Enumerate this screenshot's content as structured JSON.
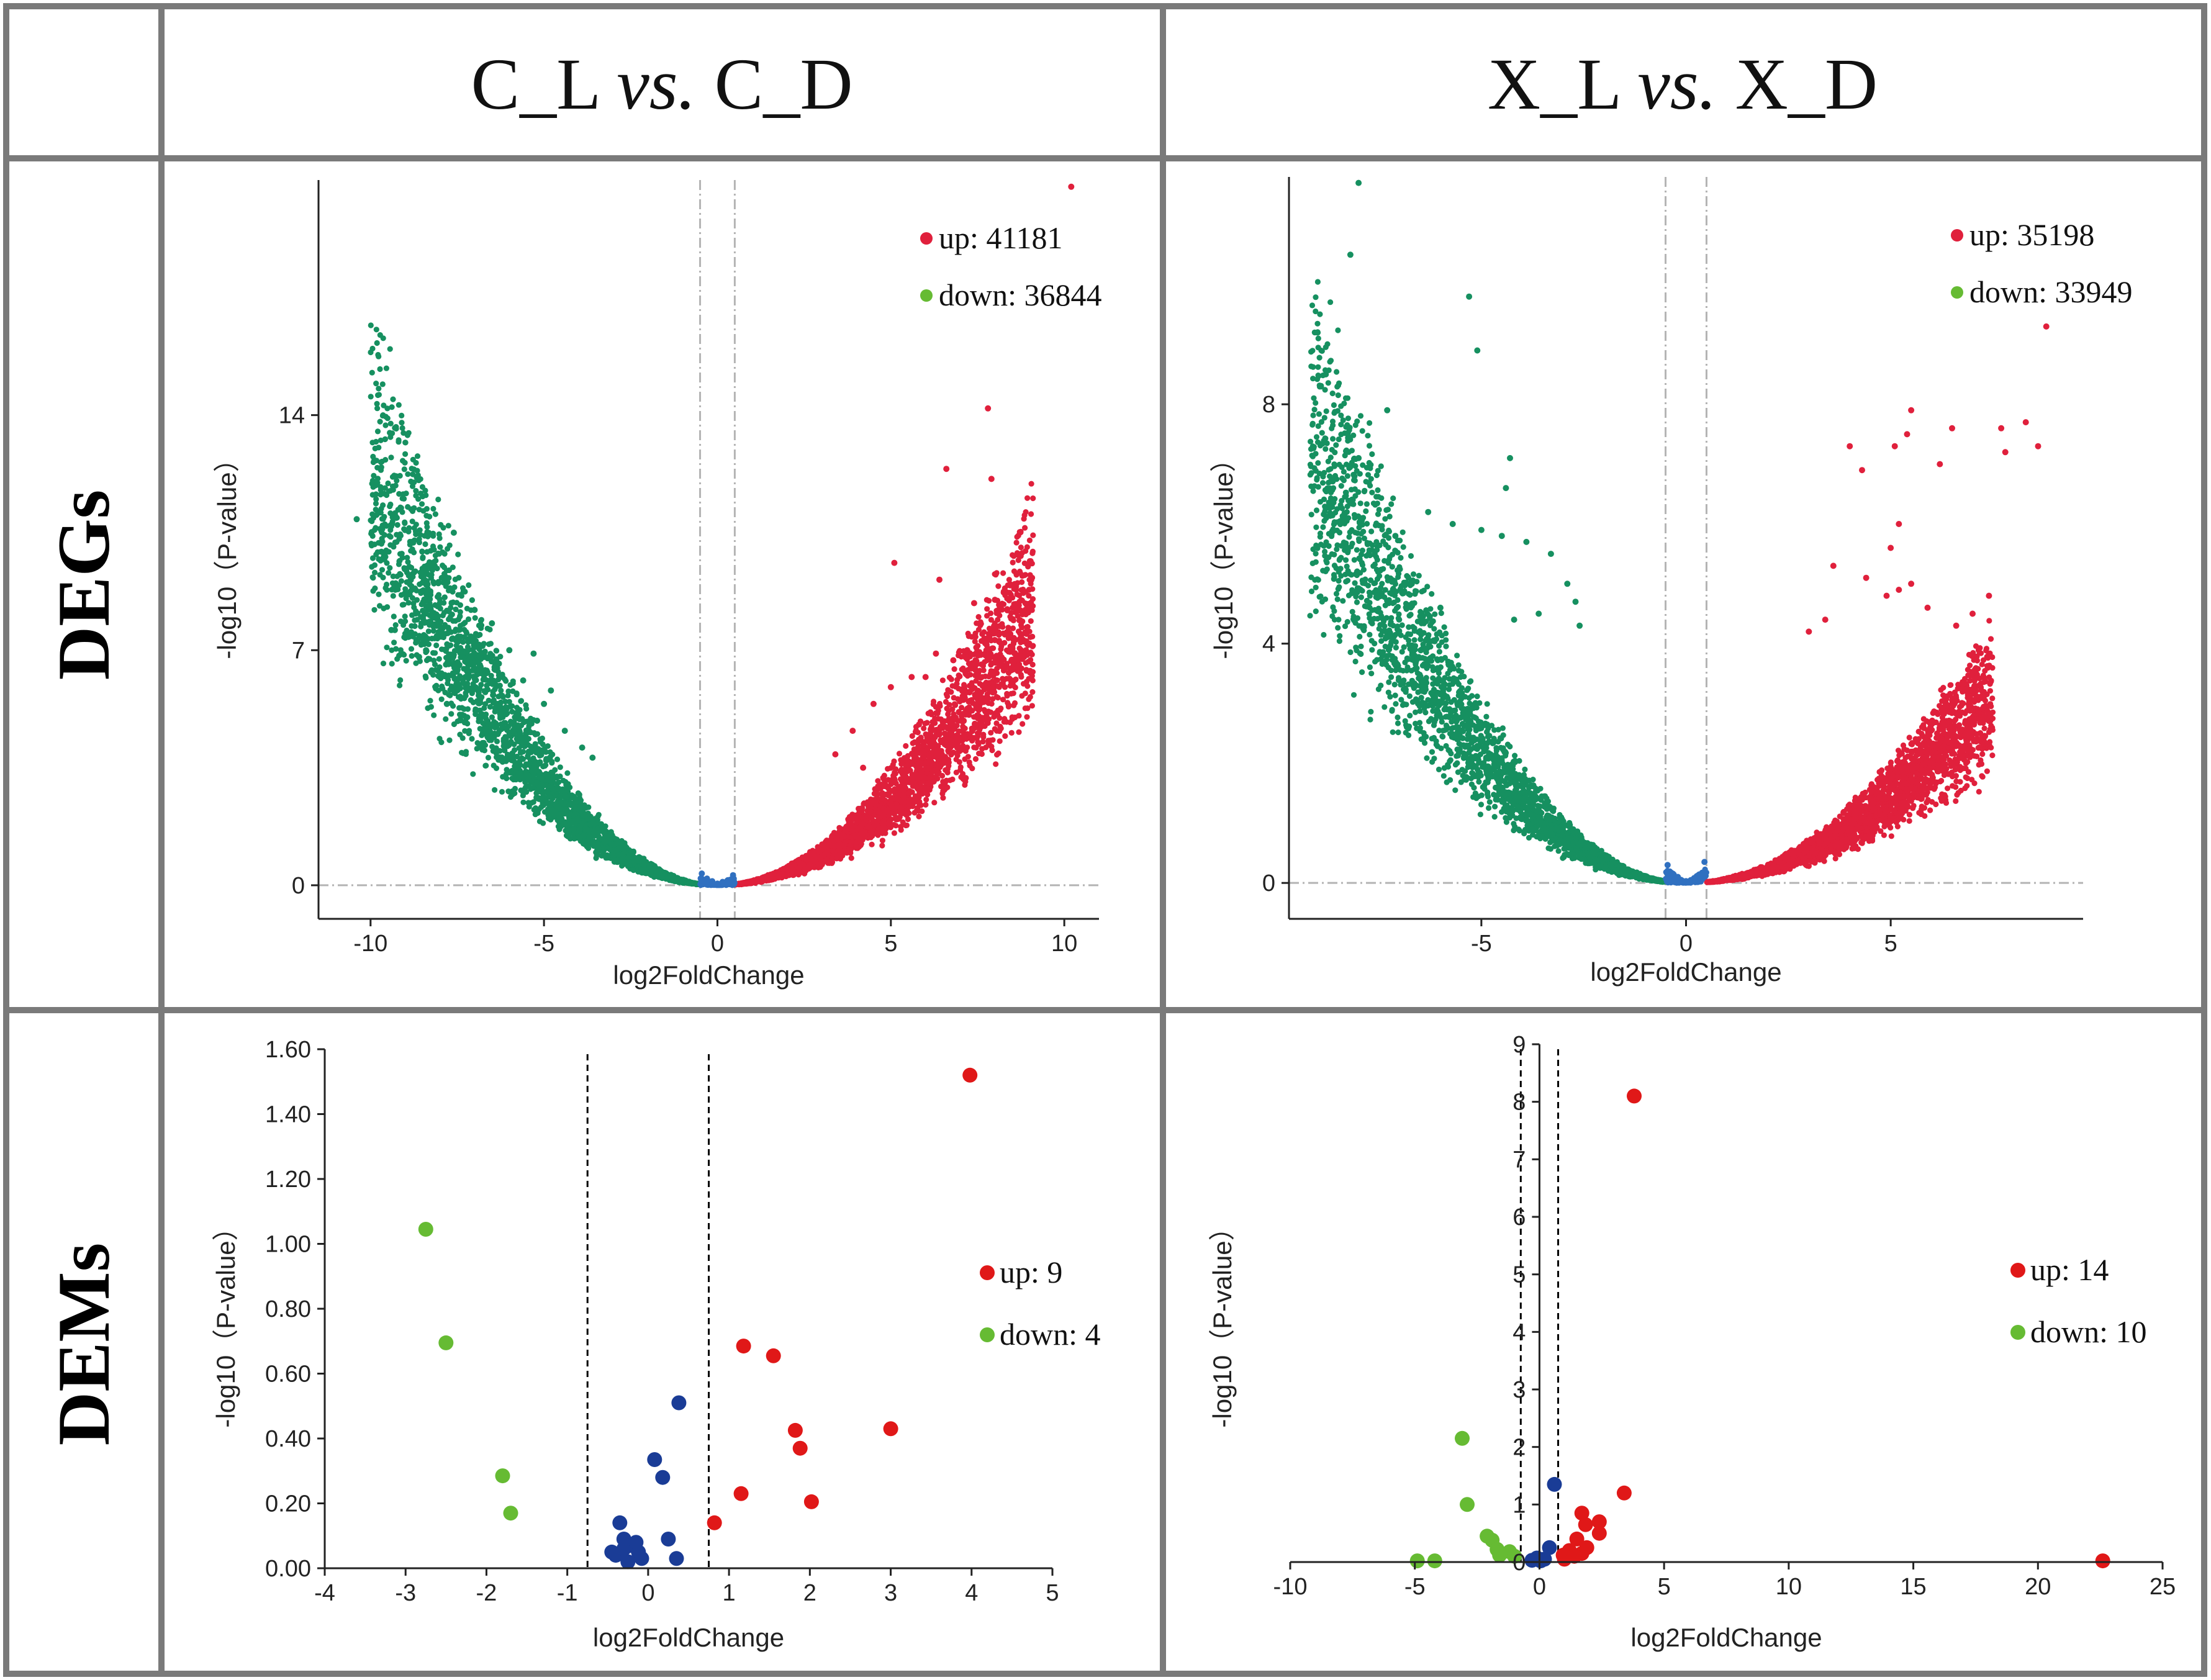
{
  "figure": {
    "column_headers": [
      {
        "left": "C_L",
        "italic": "vs.",
        "right": "C_D"
      },
      {
        "left": "X_L",
        "italic": "vs.",
        "right": "X_D"
      }
    ],
    "row_labels": [
      "DEGs",
      "DEMs"
    ]
  },
  "colors": {
    "up_deg": "#e0203c",
    "down_deg": "#169060",
    "ns_deg": "#3070c0",
    "up_dem": "#e01818",
    "down_dem": "#66bb33",
    "ns_dem": "#1a3c96",
    "legend_down_deg": "#66bb33",
    "threshold_deg": "#b4b4b4",
    "threshold_dem": "#000000"
  },
  "chart_data": [
    {
      "id": "deg_c",
      "type": "scatter",
      "title": "C_L vs. C_D (DEGs)",
      "xlabel": "log2FoldChange",
      "ylabel": "-log10（P-value）",
      "xlim": [
        -11.5,
        11
      ],
      "ylim": [
        -1,
        21
      ],
      "xticks": [
        -10,
        -5,
        0,
        5,
        10
      ],
      "xtick_labels": [
        "-10",
        "-5",
        "0",
        "5",
        "10"
      ],
      "yticks": [
        0,
        7,
        14
      ],
      "ytick_labels": [
        "0",
        "7",
        "14"
      ],
      "thresholds_x": [
        -0.5,
        0.5
      ],
      "threshold_y": 0,
      "legend": [
        {
          "label": "up: 41181",
          "series": "up"
        },
        {
          "label": "down: 36844",
          "series": "down"
        }
      ],
      "counts": {
        "up": 41181,
        "down": 36844
      },
      "series": [
        {
          "name": "up",
          "points": [
            [
              10.2,
              20.8
            ],
            [
              7.8,
              14.2
            ],
            [
              7.9,
              12.1
            ],
            [
              6.6,
              12.4
            ],
            [
              5.1,
              9.6
            ],
            [
              6.4,
              9.1
            ],
            [
              8.0,
              8.5
            ],
            [
              7.4,
              8.4
            ],
            [
              8.0,
              7.3
            ],
            [
              7.2,
              7.0
            ],
            [
              6.8,
              6.7
            ],
            [
              8.5,
              7.1
            ],
            [
              6.3,
              6.9
            ],
            [
              5.6,
              6.2
            ],
            [
              5.0,
              5.9
            ],
            [
              6.0,
              6.2
            ],
            [
              7.1,
              4.9
            ],
            [
              4.5,
              5.4
            ],
            [
              3.9,
              4.6
            ],
            [
              3.4,
              3.9
            ],
            [
              4.2,
              3.5
            ],
            [
              5.5,
              3.7
            ],
            [
              5.9,
              4.0
            ],
            [
              6.2,
              4.3
            ],
            [
              7.0,
              4.1
            ]
          ]
        },
        {
          "name": "down",
          "points": [
            [
              -9.3,
              7.6
            ],
            [
              -10.4,
              10.9
            ],
            [
              -7.6,
              10.5
            ],
            [
              -8.0,
              8.4
            ],
            [
              -9.4,
              7.6
            ],
            [
              -8.4,
              7.0
            ],
            [
              -7.0,
              8.2
            ],
            [
              -6.5,
              7.8
            ],
            [
              -6.0,
              7.0
            ],
            [
              -5.3,
              6.9
            ],
            [
              -6.3,
              6.6
            ],
            [
              -7.0,
              6.4
            ],
            [
              -5.6,
              6.1
            ],
            [
              -4.8,
              5.8
            ],
            [
              -6.9,
              5.8
            ],
            [
              -7.8,
              5.4
            ],
            [
              -8.6,
              6.8
            ],
            [
              -7.5,
              6.0
            ],
            [
              -6.1,
              5.3
            ],
            [
              -5.0,
              5.4
            ],
            [
              -3.9,
              4.1
            ],
            [
              -3.6,
              3.8
            ],
            [
              -4.4,
              4.6
            ],
            [
              -5.2,
              4.9
            ],
            [
              -5.9,
              4.6
            ]
          ]
        },
        {
          "name": "ns",
          "points": [
            [
              -0.3,
              0.2
            ],
            [
              0.0,
              0.05
            ],
            [
              0.3,
              0.15
            ],
            [
              -0.45,
              0.35
            ],
            [
              0.45,
              0.3
            ],
            [
              0.15,
              0.1
            ],
            [
              -0.15,
              0.12
            ]
          ]
        }
      ]
    },
    {
      "id": "deg_x",
      "type": "scatter",
      "title": "X_L vs. X_D (DEGs)",
      "xlabel": "log2FoldChange",
      "ylabel": "-log10（P-value）",
      "xlim": [
        -9.7,
        9.7
      ],
      "ylim": [
        -0.6,
        11.8
      ],
      "xticks": [
        -5,
        0,
        5
      ],
      "xtick_labels": [
        "-5",
        "0",
        "5"
      ],
      "yticks": [
        0,
        4,
        8
      ],
      "ytick_labels": [
        "0",
        "4",
        "8"
      ],
      "thresholds_x": [
        -0.5,
        0.5
      ],
      "threshold_y": 0,
      "legend": [
        {
          "label": "up: 35198",
          "series": "up"
        },
        {
          "label": "down: 33949",
          "series": "down"
        }
      ],
      "counts": {
        "up": 35198,
        "down": 33949
      },
      "series": [
        {
          "name": "up",
          "points": [
            [
              8.8,
              9.3
            ],
            [
              7.8,
              7.2
            ],
            [
              7.7,
              7.6
            ],
            [
              8.3,
              7.7
            ],
            [
              8.6,
              7.3
            ],
            [
              6.5,
              7.6
            ],
            [
              5.5,
              7.9
            ],
            [
              5.4,
              7.5
            ],
            [
              5.1,
              7.3
            ],
            [
              6.2,
              7.0
            ],
            [
              4.0,
              7.3
            ],
            [
              4.3,
              6.9
            ],
            [
              5.2,
              6.0
            ],
            [
              5.0,
              5.6
            ],
            [
              5.5,
              5.0
            ],
            [
              5.2,
              4.9
            ],
            [
              4.9,
              4.8
            ],
            [
              5.9,
              4.6
            ],
            [
              7.0,
              4.5
            ],
            [
              7.4,
              4.8
            ],
            [
              6.6,
              4.3
            ],
            [
              3.6,
              5.3
            ],
            [
              4.4,
              5.1
            ],
            [
              3.0,
              4.2
            ],
            [
              3.4,
              4.4
            ]
          ]
        },
        {
          "name": "down",
          "points": [
            [
              -8.0,
              11.7
            ],
            [
              -9.0,
              9.2
            ],
            [
              -8.8,
              8.5
            ],
            [
              -8.2,
              10.5
            ],
            [
              -7.3,
              7.9
            ],
            [
              -5.3,
              9.8
            ],
            [
              -5.1,
              8.9
            ],
            [
              -4.3,
              7.1
            ],
            [
              -4.4,
              6.6
            ],
            [
              -8.0,
              7.1
            ],
            [
              -8.1,
              6.8
            ],
            [
              -7.1,
              5.8
            ],
            [
              -6.3,
              6.2
            ],
            [
              -5.7,
              6.0
            ],
            [
              -5.0,
              5.9
            ],
            [
              -4.5,
              5.8
            ],
            [
              -3.9,
              5.7
            ],
            [
              -3.3,
              5.5
            ],
            [
              -2.9,
              5.0
            ],
            [
              -2.7,
              4.7
            ],
            [
              -6.7,
              5.0
            ],
            [
              -6.0,
              4.6
            ],
            [
              -4.2,
              4.4
            ],
            [
              -3.6,
              4.5
            ],
            [
              -2.6,
              4.3
            ]
          ]
        },
        {
          "name": "ns",
          "points": [
            [
              -0.35,
              0.15
            ],
            [
              0.0,
              0.03
            ],
            [
              0.35,
              0.12
            ],
            [
              -0.45,
              0.3
            ],
            [
              0.45,
              0.35
            ],
            [
              0.2,
              0.08
            ],
            [
              -0.2,
              0.1
            ]
          ]
        }
      ]
    },
    {
      "id": "dem_c",
      "type": "scatter",
      "title": "C_L vs. C_D (DEMs)",
      "xlabel": "log2FoldChange",
      "ylabel": "-log10（P-value）",
      "xlim": [
        -4,
        5
      ],
      "ylim": [
        0,
        1.6
      ],
      "xticks": [
        -4,
        -3,
        -2,
        -1,
        0,
        1,
        2,
        3,
        4,
        5
      ],
      "xtick_labels": [
        "-4",
        "-3",
        "-2",
        "-1",
        "0",
        "1",
        "2",
        "3",
        "4",
        "5"
      ],
      "yticks": [
        0,
        0.2,
        0.4,
        0.6,
        0.8,
        1.0,
        1.2,
        1.4,
        1.6
      ],
      "ytick_labels": [
        "0.00",
        "0.20",
        "0.40",
        "0.60",
        "0.80",
        "1.00",
        "1.20",
        "1.40",
        "1.60"
      ],
      "thresholds_x": [
        -0.75,
        0.75
      ],
      "legend": [
        {
          "label": "up: 9",
          "series": "up"
        },
        {
          "label": "down: 4",
          "series": "down"
        }
      ],
      "counts": {
        "up": 9,
        "down": 4
      },
      "series": [
        {
          "name": "up",
          "points": [
            [
              3.98,
              1.52
            ],
            [
              1.18,
              0.685
            ],
            [
              1.55,
              0.655
            ],
            [
              1.82,
              0.425
            ],
            [
              1.88,
              0.37
            ],
            [
              3.0,
              0.43
            ],
            [
              1.15,
              0.23
            ],
            [
              2.02,
              0.205
            ],
            [
              0.82,
              0.14
            ]
          ]
        },
        {
          "name": "down",
          "points": [
            [
              -2.75,
              1.045
            ],
            [
              -2.5,
              0.695
            ],
            [
              -1.8,
              0.285
            ],
            [
              -1.7,
              0.17
            ]
          ]
        },
        {
          "name": "ns",
          "points": [
            [
              0.38,
              0.51
            ],
            [
              0.08,
              0.335
            ],
            [
              0.18,
              0.28
            ],
            [
              -0.35,
              0.14
            ],
            [
              0.25,
              0.09
            ],
            [
              -0.45,
              0.05
            ],
            [
              -0.3,
              0.09
            ],
            [
              -0.2,
              0.07
            ],
            [
              -0.12,
              0.05
            ],
            [
              -0.08,
              0.03
            ],
            [
              -0.25,
              0.02
            ],
            [
              0.35,
              0.03
            ],
            [
              -0.4,
              0.04
            ],
            [
              -0.3,
              0.06
            ],
            [
              -0.15,
              0.08
            ]
          ]
        }
      ]
    },
    {
      "id": "dem_x",
      "type": "scatter",
      "title": "X_L vs. X_D (DEMs)",
      "xlabel": "log2FoldChange",
      "ylabel": "-log10（P-value）",
      "xlim": [
        -10,
        25
      ],
      "ylim": [
        0,
        9
      ],
      "xticks": [
        -10,
        -5,
        0,
        5,
        10,
        15,
        20,
        25
      ],
      "xtick_labels": [
        "-10",
        "-5",
        "0",
        "5",
        "10",
        "15",
        "20",
        "25"
      ],
      "yticks": [
        0,
        1,
        2,
        3,
        4,
        5,
        6,
        7,
        8,
        9
      ],
      "ytick_labels": [
        "0",
        "1",
        "2",
        "3",
        "4",
        "5",
        "6",
        "7",
        "8",
        "9"
      ],
      "thresholds_x": [
        -0.75,
        0.75
      ],
      "legend": [
        {
          "label": "up: 14",
          "series": "up"
        },
        {
          "label": "down: 10",
          "series": "down"
        }
      ],
      "counts": {
        "up": 14,
        "down": 10
      },
      "series": [
        {
          "name": "up",
          "points": [
            [
              3.8,
              8.1
            ],
            [
              3.4,
              1.2
            ],
            [
              1.7,
              0.85
            ],
            [
              2.4,
              0.7
            ],
            [
              1.85,
              0.65
            ],
            [
              2.4,
              0.5
            ],
            [
              1.5,
              0.4
            ],
            [
              1.9,
              0.25
            ],
            [
              1.2,
              0.2
            ],
            [
              1.7,
              0.15
            ],
            [
              0.95,
              0.12
            ],
            [
              1.4,
              0.1
            ],
            [
              22.6,
              0.02
            ],
            [
              1.0,
              0.05
            ]
          ]
        },
        {
          "name": "down",
          "points": [
            [
              -3.1,
              2.15
            ],
            [
              -2.9,
              1.0
            ],
            [
              -2.1,
              0.45
            ],
            [
              -1.9,
              0.38
            ],
            [
              -1.7,
              0.22
            ],
            [
              -1.2,
              0.18
            ],
            [
              -1.6,
              0.12
            ],
            [
              -1.0,
              0.1
            ],
            [
              -4.9,
              0.02
            ],
            [
              -4.2,
              0.02
            ]
          ]
        },
        {
          "name": "ns",
          "points": [
            [
              0.6,
              1.35
            ],
            [
              0.4,
              0.25
            ],
            [
              -0.1,
              0.07
            ],
            [
              0.2,
              0.05
            ],
            [
              -0.3,
              0.03
            ],
            [
              0.05,
              0.02
            ]
          ]
        }
      ]
    }
  ]
}
